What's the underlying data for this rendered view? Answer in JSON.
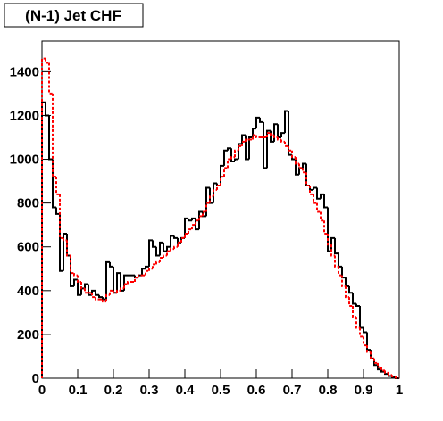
{
  "chart_data": {
    "type": "histogram",
    "title": "(N-1) Jet CHF",
    "bins": [
      0,
      0.01,
      0.02,
      0.03,
      0.04,
      0.05,
      0.06,
      0.07,
      0.08,
      0.09,
      0.1,
      0.11,
      0.12,
      0.13,
      0.14,
      0.15,
      0.16,
      0.17,
      0.18,
      0.19,
      0.2,
      0.21,
      0.22,
      0.23,
      0.24,
      0.25,
      0.26,
      0.27,
      0.28,
      0.29,
      0.3,
      0.31,
      0.32,
      0.33,
      0.34,
      0.35,
      0.36,
      0.37,
      0.38,
      0.39,
      0.4,
      0.41,
      0.42,
      0.43,
      0.44,
      0.45,
      0.46,
      0.47,
      0.48,
      0.49,
      0.5,
      0.51,
      0.52,
      0.53,
      0.54,
      0.55,
      0.56,
      0.57,
      0.58,
      0.59,
      0.6,
      0.61,
      0.62,
      0.63,
      0.64,
      0.65,
      0.66,
      0.67,
      0.68,
      0.69,
      0.7,
      0.71,
      0.72,
      0.73,
      0.74,
      0.75,
      0.76,
      0.77,
      0.78,
      0.79,
      0.8,
      0.81,
      0.82,
      0.83,
      0.84,
      0.85,
      0.86,
      0.87,
      0.88,
      0.89,
      0.9,
      0.91,
      0.92,
      0.93,
      0.94,
      0.95,
      0.96,
      0.97,
      0.98,
      0.99,
      1
    ],
    "series": [
      {
        "color": "#000000",
        "style": "solid",
        "values": [
          1260,
          1200,
          1000,
          780,
          750,
          490,
          660,
          560,
          420,
          450,
          380,
          410,
          430,
          380,
          400,
          380,
          370,
          360,
          530,
          510,
          390,
          480,
          400,
          470,
          470,
          470,
          460,
          470,
          500,
          510,
          630,
          600,
          560,
          620,
          580,
          600,
          650,
          640,
          620,
          640,
          730,
          720,
          730,
          680,
          760,
          740,
          870,
          800,
          890,
          880,
          970,
          1040,
          1050,
          990,
          1000,
          1070,
          1110,
          1000,
          1100,
          1140,
          1190,
          1170,
          960,
          1130,
          1080,
          1160,
          1100,
          1120,
          1220,
          1020,
          1000,
          930,
          960,
          980,
          880,
          860,
          870,
          820,
          840,
          780,
          580,
          640,
          570,
          510,
          460,
          420,
          390,
          340,
          330,
          230,
          210,
          130,
          90,
          60,
          40,
          30,
          20,
          10,
          5,
          0
        ]
      },
      {
        "color": "#ff0000",
        "style": "dotted",
        "values": [
          1460,
          1440,
          1300,
          920,
          840,
          640,
          630,
          560,
          480,
          470,
          440,
          410,
          390,
          390,
          370,
          360,
          360,
          350,
          380,
          400,
          390,
          400,
          410,
          430,
          440,
          440,
          460,
          470,
          470,
          490,
          500,
          520,
          530,
          550,
          560,
          580,
          590,
          600,
          620,
          640,
          660,
          680,
          700,
          720,
          740,
          760,
          800,
          830,
          860,
          880,
          920,
          960,
          1000,
          1010,
          1040,
          1060,
          1080,
          1090,
          1090,
          1110,
          1100,
          1100,
          1100,
          1120,
          1110,
          1100,
          1090,
          1080,
          1060,
          1040,
          1010,
          980,
          960,
          940,
          880,
          840,
          800,
          760,
          720,
          660,
          610,
          560,
          510,
          470,
          420,
          370,
          330,
          280,
          230,
          190,
          150,
          120,
          90,
          70,
          50,
          35,
          25,
          15,
          8,
          2
        ]
      }
    ],
    "xlim": [
      0,
      1
    ],
    "xticks": [
      0,
      0.1,
      0.2,
      0.3,
      0.4,
      0.5,
      0.6,
      0.7,
      0.8,
      0.9,
      1
    ],
    "ylim": [
      0,
      1540
    ],
    "yticks": [
      0,
      200,
      400,
      600,
      800,
      1000,
      1200,
      1400
    ]
  }
}
